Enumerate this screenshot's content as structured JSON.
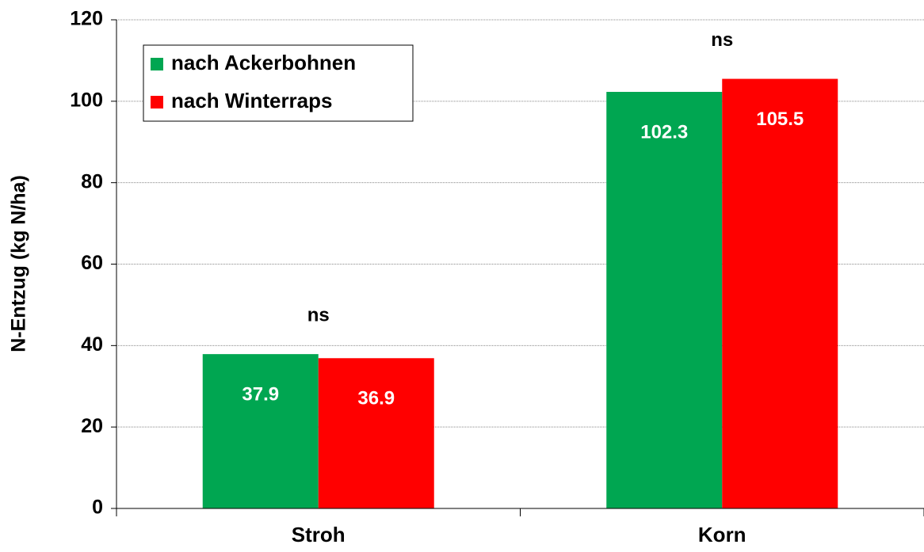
{
  "chart_data": {
    "type": "bar",
    "y_label": "N-Entzug (kg N/ha)",
    "categories": [
      "Stroh",
      "Korn"
    ],
    "series": [
      {
        "name": "nach Ackerbohnen",
        "color": "#00a651",
        "values": [
          37.9,
          102.3
        ]
      },
      {
        "name": "nach Winterraps",
        "color": "#ff0000",
        "values": [
          36.9,
          105.5
        ]
      }
    ],
    "annotations": [
      "ns",
      "ns"
    ],
    "ylim": [
      0,
      120
    ],
    "yticks": [
      0,
      20,
      40,
      60,
      80,
      100,
      120
    ],
    "grid": true,
    "legend": "top-left"
  }
}
